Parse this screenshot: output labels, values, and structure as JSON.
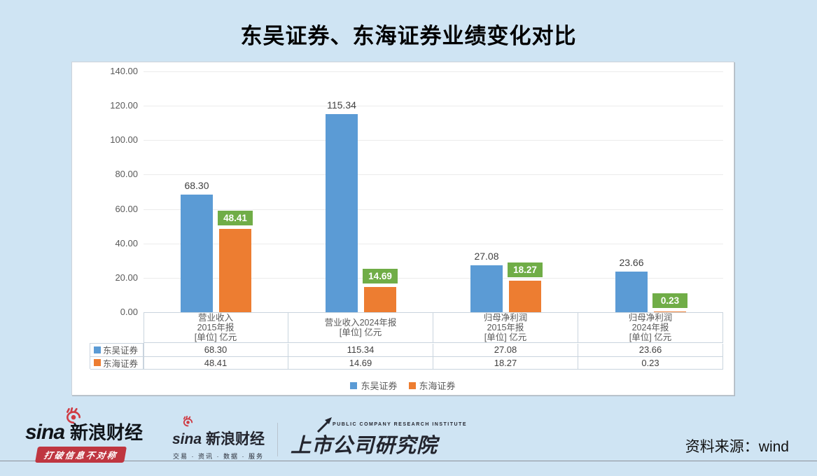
{
  "title": "东吴证券、东海证券业绩变化对比",
  "source_label": "资料来源：wind",
  "footer": {
    "sina_word": "sina",
    "brand_left": "新浪财经",
    "slogan": "打破信息不对称",
    "sina_word_mid": "sina",
    "brand_mid": "新浪财经",
    "tagline": "交易 · 资讯 · 数据 · 服务",
    "institute": "上市公司研究院",
    "institute_en": "PUBLIC COMPANY RESEARCH INSTITUTE"
  },
  "colors": {
    "background": "#cfe4f3",
    "panel": "#ffffff",
    "series1_blue": "#5b9bd5",
    "series2_orange": "#ed7d31",
    "green_badge": "#70ad47",
    "axis_text": "#595959",
    "value_text": "#3f3f3f",
    "table_border": "#c9d4de",
    "banner_red": "#bf3640",
    "gridline": "#ececec"
  },
  "chart_data": {
    "type": "bar",
    "title": "东吴证券、东海证券业绩变化对比",
    "categories": [
      [
        "营业收入",
        "2015年报",
        "[单位] 亿元"
      ],
      [
        "营业收入2024年报",
        "[单位] 亿元"
      ],
      [
        "归母净利润",
        "2015年报",
        "[单位] 亿元"
      ],
      [
        "归母净利润",
        "2024年报",
        "[单位] 亿元"
      ]
    ],
    "series": [
      {
        "name": "东吴证券",
        "color": "#5b9bd5",
        "values": [
          68.3,
          115.34,
          27.08,
          23.66
        ],
        "label_style": "plain"
      },
      {
        "name": "东海证券",
        "color": "#ed7d31",
        "values": [
          48.41,
          14.69,
          18.27,
          0.23
        ],
        "label_style": "green-box",
        "label_bg": "#70ad47",
        "label_color": "#ffffff"
      }
    ],
    "ylim": [
      0,
      140
    ],
    "ytick_step": 20,
    "ytick_labels": [
      "0.00",
      "20.00",
      "40.00",
      "60.00",
      "80.00",
      "100.00",
      "120.00",
      "140.00"
    ],
    "grid": true,
    "legend_position": "bottom",
    "has_data_table": true
  }
}
